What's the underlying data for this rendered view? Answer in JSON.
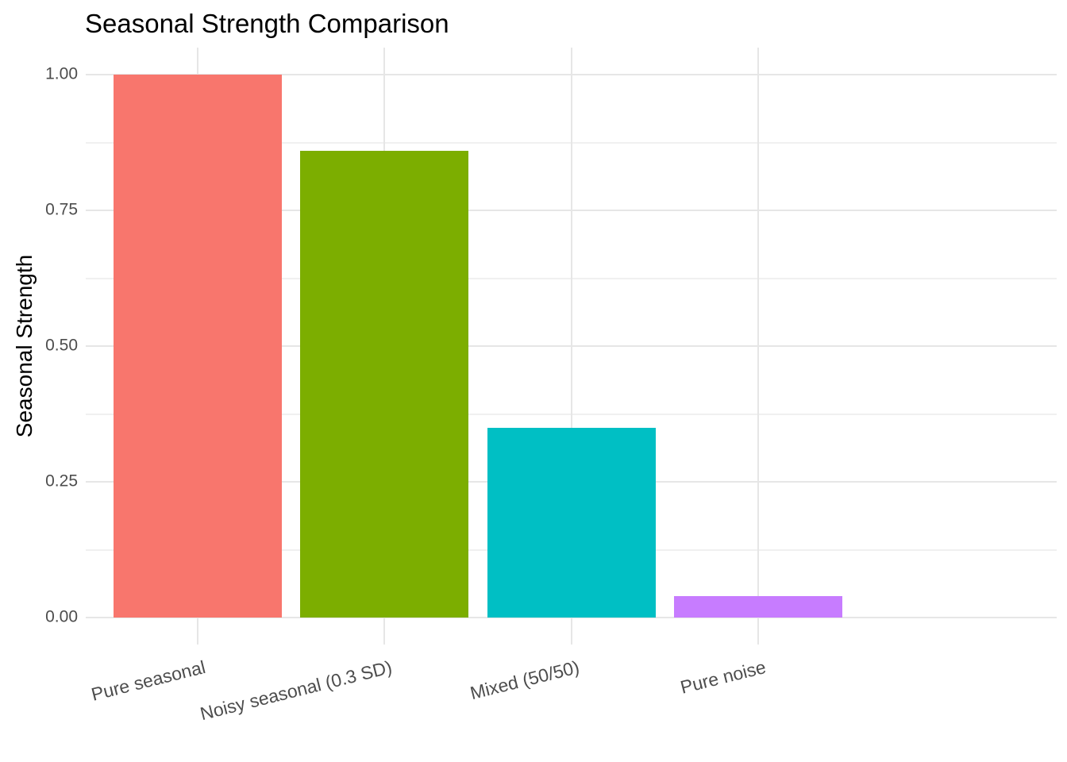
{
  "title": "Seasonal Strength Comparison",
  "y_axis": {
    "label": "Seasonal Strength",
    "tick_labels": [
      "0.00",
      "0.25",
      "0.50",
      "0.75",
      "1.00"
    ],
    "tick_values": [
      0,
      0.25,
      0.5,
      0.75,
      1.0
    ]
  },
  "x_axis": {
    "tick_labels": [
      "Pure seasonal",
      "Noisy seasonal (0.3 SD)",
      "Mixed (50/50)",
      "Pure noise"
    ]
  },
  "chart_data": {
    "type": "bar",
    "title": "Seasonal Strength Comparison",
    "xlabel": "",
    "ylabel": "Seasonal Strength",
    "categories": [
      "Pure seasonal",
      "Noisy seasonal (0.3 SD)",
      "Mixed (50/50)",
      "Pure noise"
    ],
    "values": [
      1.0,
      0.86,
      0.35,
      0.04
    ],
    "bar_colors": [
      "#F8766D",
      "#7CAE00",
      "#00BFC4",
      "#C77CFF"
    ],
    "ylim": [
      0,
      1.05
    ],
    "yticks": [
      0,
      0.25,
      0.5,
      0.75,
      1.0
    ],
    "grid": "horizontal major and minor gridlines; vertical major gridlines at category centers; no axis lines",
    "legend": "none",
    "background_color": "#FFFFFF",
    "grid_major_color": "#E6E6E6",
    "grid_minor_color": "#F0F0F0",
    "axis_text_color": "#4D4D4D",
    "title_color": "#000000"
  }
}
